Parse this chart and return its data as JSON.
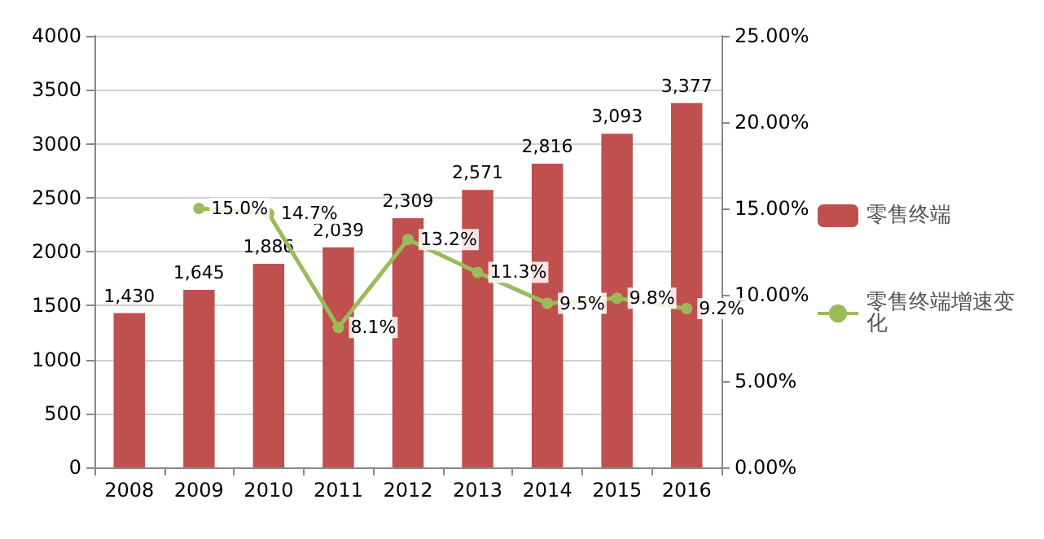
{
  "chart_data": {
    "type": "bar",
    "categories": [
      "2008",
      "2009",
      "2010",
      "2011",
      "2012",
      "2013",
      "2014",
      "2015",
      "2016"
    ],
    "series": [
      {
        "name": "零售终端",
        "color": "#c0504d",
        "values": [
          1430,
          1645,
          1886,
          2039,
          2309,
          2571,
          2816,
          3093,
          3377
        ],
        "value_labels": [
          "1,430",
          "1,645",
          "1,886",
          "2,039",
          "2,309",
          "2,571",
          "2,816",
          "3,093",
          "3,377"
        ]
      },
      {
        "name": "零售终端增速变化",
        "type": "line",
        "axis": "y2",
        "color": "#9bbb59",
        "marker": "circle",
        "values": [
          null,
          15.0,
          14.7,
          8.1,
          13.2,
          11.3,
          9.5,
          9.8,
          9.2
        ],
        "value_labels": [
          null,
          "15.0%",
          "14.7%",
          "8.1%",
          "13.2%",
          "11.3%",
          "9.5%",
          "9.8%",
          "9.2%"
        ]
      }
    ],
    "ylim": [
      0,
      4000
    ],
    "yticks": [
      0,
      500,
      1000,
      1500,
      2000,
      2500,
      3000,
      3500,
      4000
    ],
    "y2lim": [
      0,
      25
    ],
    "y2ticks": [
      {
        "value": 0,
        "label": "0.00%"
      },
      {
        "value": 5,
        "label": "5.00%"
      },
      {
        "value": 10,
        "label": "10.00%"
      },
      {
        "value": 15,
        "label": "15.00%"
      },
      {
        "value": 20,
        "label": "20.00%"
      },
      {
        "value": 25,
        "label": "25.00%"
      }
    ],
    "grid": "y",
    "legend": "right"
  }
}
